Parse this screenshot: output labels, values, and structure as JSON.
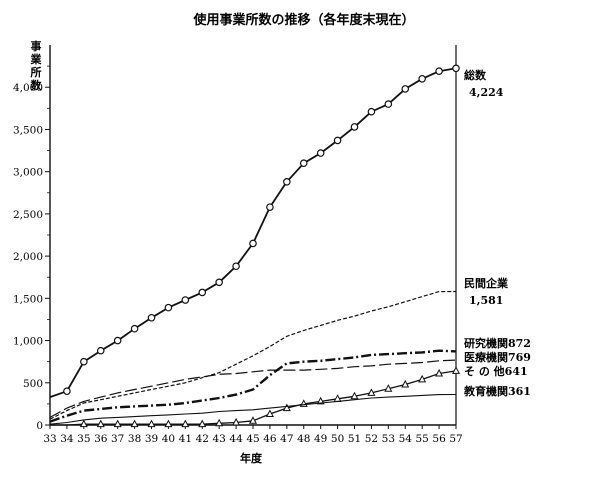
{
  "chart_data": {
    "type": "line",
    "title": "使用事業所数の推移（各年度末現在）",
    "xlabel": "年度",
    "ylabel_chars": [
      "事",
      "業",
      "所",
      "数"
    ],
    "x": [
      33,
      34,
      35,
      36,
      37,
      38,
      39,
      40,
      41,
      42,
      43,
      44,
      45,
      46,
      47,
      48,
      49,
      50,
      51,
      52,
      53,
      54,
      55,
      56,
      57
    ],
    "x_tick_labels": [
      "33",
      "34",
      "35",
      "36",
      "37",
      "38",
      "39",
      "40",
      "41",
      "42",
      "43",
      "44",
      "45",
      "46",
      "47",
      "48",
      "49",
      "50",
      "51",
      "52",
      "53",
      "54",
      "55",
      "56",
      "57"
    ],
    "xlim": [
      33,
      57
    ],
    "ylim": [
      0,
      4500
    ],
    "y_ticks": [
      0,
      500,
      1000,
      1500,
      2000,
      2500,
      3000,
      3500,
      4000
    ],
    "y_tick_labels": [
      "0",
      "500",
      "1,000",
      "1,500",
      "2,000",
      "2,500",
      "3,000",
      "3,500",
      "4,000"
    ],
    "grid": false,
    "series": [
      {
        "name": "総数",
        "value_label": "4,224",
        "style": "solid-circles",
        "values": [
          330,
          400,
          750,
          880,
          1000,
          1140,
          1270,
          1390,
          1480,
          1570,
          1690,
          1880,
          2150,
          2580,
          2880,
          3100,
          3220,
          3370,
          3530,
          3710,
          3800,
          3980,
          4100,
          4190,
          4224
        ]
      },
      {
        "name": "民間企業",
        "value_label": "1,581",
        "style": "dashed-fine",
        "values": [
          70,
          170,
          260,
          300,
          340,
          380,
          420,
          460,
          500,
          560,
          620,
          720,
          820,
          930,
          1050,
          1120,
          1180,
          1240,
          1290,
          1350,
          1400,
          1460,
          1520,
          1580,
          1581
        ]
      },
      {
        "name": "研究機関872",
        "style": "dash-dot-thick",
        "values": [
          40,
          110,
          170,
          190,
          210,
          220,
          230,
          240,
          260,
          290,
          320,
          360,
          420,
          590,
          730,
          750,
          760,
          780,
          800,
          830,
          840,
          850,
          860,
          880,
          872
        ]
      },
      {
        "name": "医療機関769",
        "style": "long-dash",
        "values": [
          90,
          200,
          280,
          330,
          380,
          420,
          460,
          500,
          540,
          570,
          600,
          610,
          630,
          650,
          650,
          650,
          660,
          670,
          690,
          700,
          720,
          730,
          740,
          760,
          769
        ]
      },
      {
        "name": "そ の 他641",
        "style": "solid-triangles",
        "values": [
          0,
          0,
          10,
          10,
          10,
          10,
          10,
          10,
          10,
          10,
          20,
          30,
          50,
          130,
          200,
          250,
          280,
          310,
          340,
          380,
          430,
          480,
          540,
          610,
          641
        ]
      },
      {
        "name": "教育機関361",
        "style": "solid-thin",
        "values": [
          10,
          30,
          60,
          80,
          90,
          100,
          110,
          120,
          130,
          140,
          160,
          170,
          180,
          200,
          220,
          240,
          260,
          280,
          300,
          320,
          330,
          340,
          350,
          360,
          361
        ]
      }
    ]
  }
}
